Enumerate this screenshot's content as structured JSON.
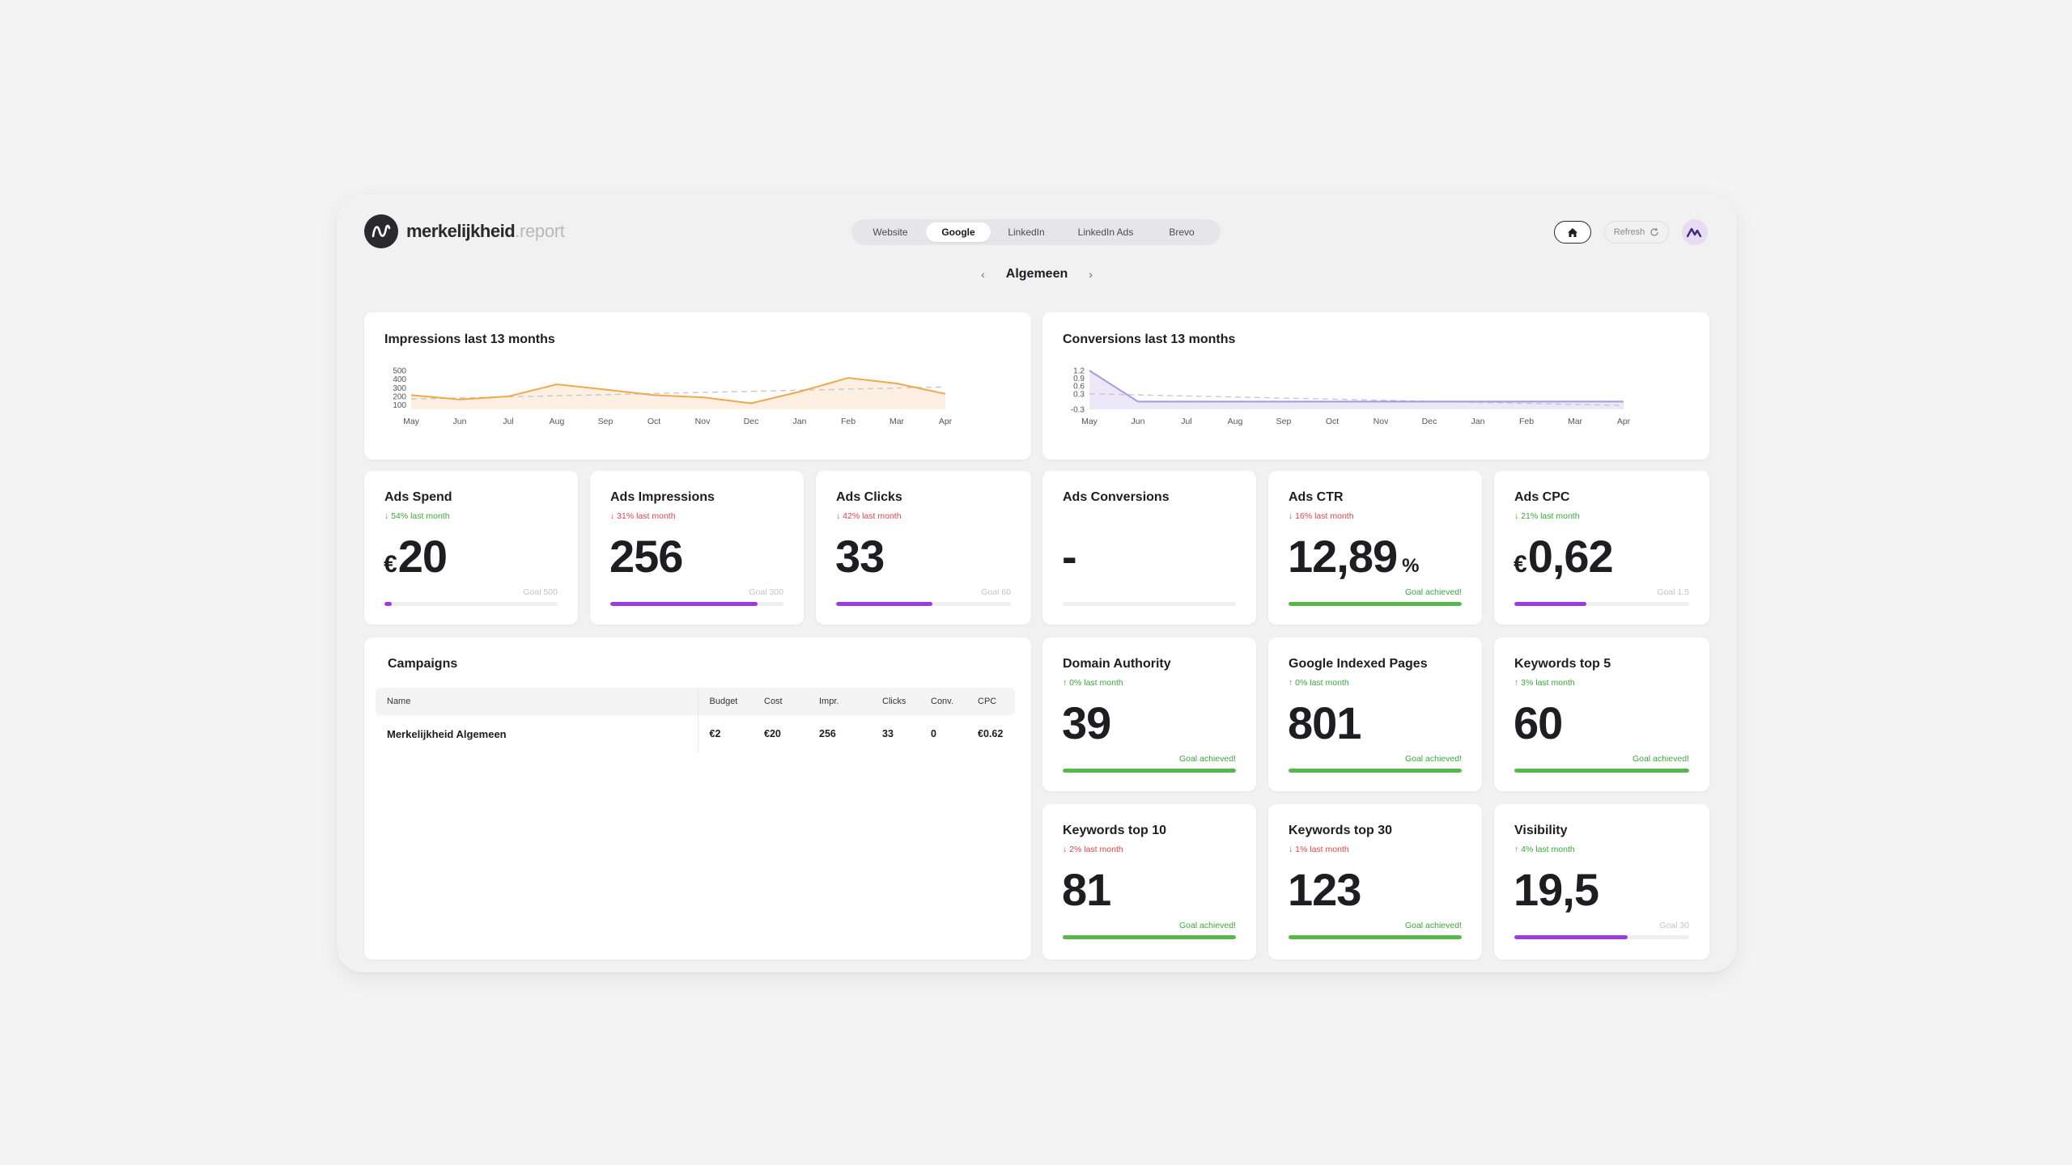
{
  "header": {
    "logo_text": "merkelijkheid",
    "logo_suffix": ".report",
    "tabs": [
      {
        "label": "Website",
        "active": false
      },
      {
        "label": "Google",
        "active": true
      },
      {
        "label": "LinkedIn",
        "active": false
      },
      {
        "label": "LinkedIn Ads",
        "active": false
      },
      {
        "label": "Brevo",
        "active": false
      }
    ],
    "refresh_label": "Refresh",
    "section_title": "Algemeen",
    "prev_arrow": "‹",
    "next_arrow": "›"
  },
  "colors": {
    "impressions_line": "#f0a84a",
    "impressions_fill": "#fdf0e2",
    "conversions_line": "#a79be0",
    "conversions_fill": "#ece8fa",
    "trend_dash": "#c8c8cc",
    "goal_green": "#55b74c",
    "goal_purple": "#9b3ce0",
    "delta_up": "#3aa83a",
    "delta_down": "#e0454a"
  },
  "chart_data": [
    {
      "type": "area",
      "title": "Impressions last 13 months",
      "x": [
        "May",
        "Jun",
        "Jul",
        "Aug",
        "Sep",
        "Oct",
        "Nov",
        "Dec",
        "Jan",
        "Feb",
        "Mar",
        "Apr"
      ],
      "series": [
        {
          "values": [
            215,
            165,
            200,
            340,
            280,
            215,
            190,
            120,
            255,
            415,
            350,
            230
          ]
        }
      ],
      "trend": [
        170,
        310
      ],
      "yticks": [
        100,
        200,
        300,
        400,
        500
      ],
      "ylim": [
        50,
        500
      ],
      "grid": false
    },
    {
      "type": "area",
      "title": "Conversions last 13 months",
      "x": [
        "May",
        "Jun",
        "Jul",
        "Aug",
        "Sep",
        "Oct",
        "Nov",
        "Dec",
        "Jan",
        "Feb",
        "Mar",
        "Apr"
      ],
      "series": [
        {
          "values": [
            1.2,
            0,
            0,
            0,
            0,
            0,
            0,
            0,
            0,
            0,
            0,
            0
          ]
        }
      ],
      "trend": [
        0.3,
        -0.15
      ],
      "yticks": [
        -0.3,
        0.3,
        0.6,
        0.9,
        1.2
      ],
      "ylim": [
        -0.3,
        1.2
      ],
      "grid": false
    }
  ],
  "metrics": [
    {
      "id": "ads-spend",
      "title": "Ads Spend",
      "delta": "↓ 54% last month",
      "dir": "up",
      "prefix": "€",
      "value": "20",
      "suffix": "",
      "goal": "Goal 500",
      "goal_ok": false,
      "progress": 0.04,
      "bar": "purple"
    },
    {
      "id": "ads-impressions",
      "title": "Ads Impressions",
      "delta": "↓ 31% last month",
      "dir": "down",
      "prefix": "",
      "value": "256",
      "suffix": "",
      "goal": "Goal 300",
      "goal_ok": false,
      "progress": 0.85,
      "bar": "purple"
    },
    {
      "id": "ads-clicks",
      "title": "Ads Clicks",
      "delta": "↓ 42% last month",
      "dir": "down",
      "prefix": "",
      "value": "33",
      "suffix": "",
      "goal": "Goal 60",
      "goal_ok": false,
      "progress": 0.55,
      "bar": "purple"
    },
    {
      "id": "ads-conversions",
      "title": "Ads Conversions",
      "delta": "",
      "dir": "",
      "prefix": "",
      "value": "-",
      "suffix": "",
      "goal": "",
      "goal_ok": false,
      "progress": 0,
      "bar": "purple"
    },
    {
      "id": "ads-ctr",
      "title": "Ads CTR",
      "delta": "↓ 16% last month",
      "dir": "down",
      "prefix": "",
      "value": "12,89",
      "suffix": "%",
      "goal": "Goal achieved!",
      "goal_ok": true,
      "progress": 1,
      "bar": "green"
    },
    {
      "id": "ads-cpc",
      "title": "Ads CPC",
      "delta": "↓ 21% last month",
      "dir": "up",
      "prefix": "€",
      "value": "0,62",
      "suffix": "",
      "goal": "Goal 1.5",
      "goal_ok": false,
      "progress": 0.41,
      "bar": "purple"
    },
    {
      "id": "domain-authority",
      "title": "Domain Authority",
      "delta": "↑ 0% last month",
      "dir": "up",
      "prefix": "",
      "value": "39",
      "suffix": "",
      "goal": "Goal achieved!",
      "goal_ok": true,
      "progress": 1,
      "bar": "green"
    },
    {
      "id": "google-indexed-pages",
      "title": "Google Indexed Pages",
      "delta": "↑ 0% last month",
      "dir": "up",
      "prefix": "",
      "value": "801",
      "suffix": "",
      "goal": "Goal achieved!",
      "goal_ok": true,
      "progress": 1,
      "bar": "green"
    },
    {
      "id": "keywords-top-5",
      "title": "Keywords top 5",
      "delta": "↑ 3% last month",
      "dir": "up",
      "prefix": "",
      "value": "60",
      "suffix": "",
      "goal": "Goal achieved!",
      "goal_ok": true,
      "progress": 1,
      "bar": "green"
    },
    {
      "id": "keywords-top-10",
      "title": "Keywords top 10",
      "delta": "↓ 2% last month",
      "dir": "down",
      "prefix": "",
      "value": "81",
      "suffix": "",
      "goal": "Goal achieved!",
      "goal_ok": true,
      "progress": 1,
      "bar": "green"
    },
    {
      "id": "keywords-top-30",
      "title": "Keywords top 30",
      "delta": "↓ 1% last month",
      "dir": "down",
      "prefix": "",
      "value": "123",
      "suffix": "",
      "goal": "Goal achieved!",
      "goal_ok": true,
      "progress": 1,
      "bar": "green"
    },
    {
      "id": "visibility",
      "title": "Visibility",
      "delta": "↑ 4% last month",
      "dir": "up",
      "prefix": "",
      "value": "19,5",
      "suffix": "",
      "goal": "Goal 30",
      "goal_ok": false,
      "progress": 0.65,
      "bar": "purple"
    }
  ],
  "campaigns": {
    "title": "Campaigns",
    "columns": [
      "Name",
      "Budget",
      "Cost",
      "Impr.",
      "Clicks",
      "Conv.",
      "CPC"
    ],
    "rows": [
      [
        "Merkelijkheid Algemeen",
        "€2",
        "€20",
        "256",
        "33",
        "0",
        "€0.62"
      ]
    ]
  }
}
